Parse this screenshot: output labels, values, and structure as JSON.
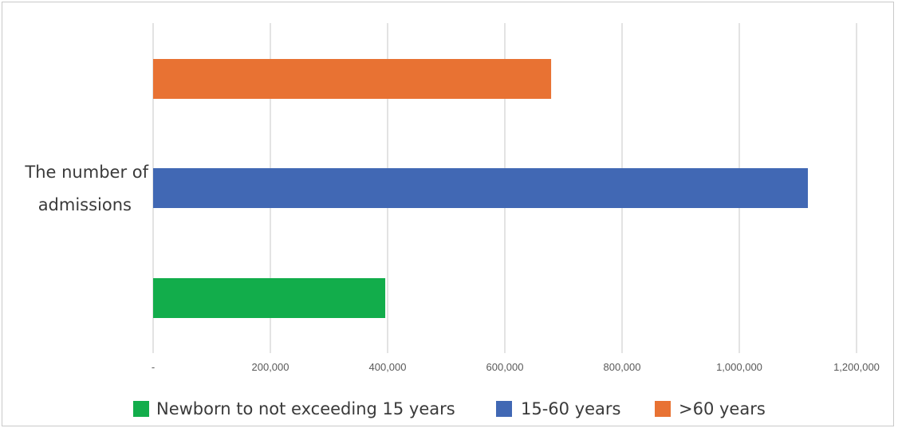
{
  "chart_data": {
    "type": "bar",
    "orientation": "horizontal",
    "categories": [
      "The number of admissions"
    ],
    "series": [
      {
        "name": "Newborn to not exceeding 15 years",
        "values": [
          396000
        ],
        "color": "#12ad4b"
      },
      {
        "name": "15-60 years",
        "values": [
          1117000
        ],
        "color": "#4168b4"
      },
      {
        "name": ">60 years",
        "values": [
          679000
        ],
        "color": "#e87233"
      }
    ],
    "xlim": [
      0,
      1200000
    ],
    "xticks": [
      {
        "value": 0,
        "label": "-"
      },
      {
        "value": 200000,
        "label": "200,000"
      },
      {
        "value": 400000,
        "label": "400,000"
      },
      {
        "value": 600000,
        "label": "600,000"
      },
      {
        "value": 800000,
        "label": "800,000"
      },
      {
        "value": 1000000,
        "label": "1,000,000"
      },
      {
        "value": 1200000,
        "label": "1,200,000"
      }
    ],
    "category_label_lines": [
      "The number of",
      "admissions"
    ],
    "grid": true,
    "legend_position": "bottom"
  }
}
